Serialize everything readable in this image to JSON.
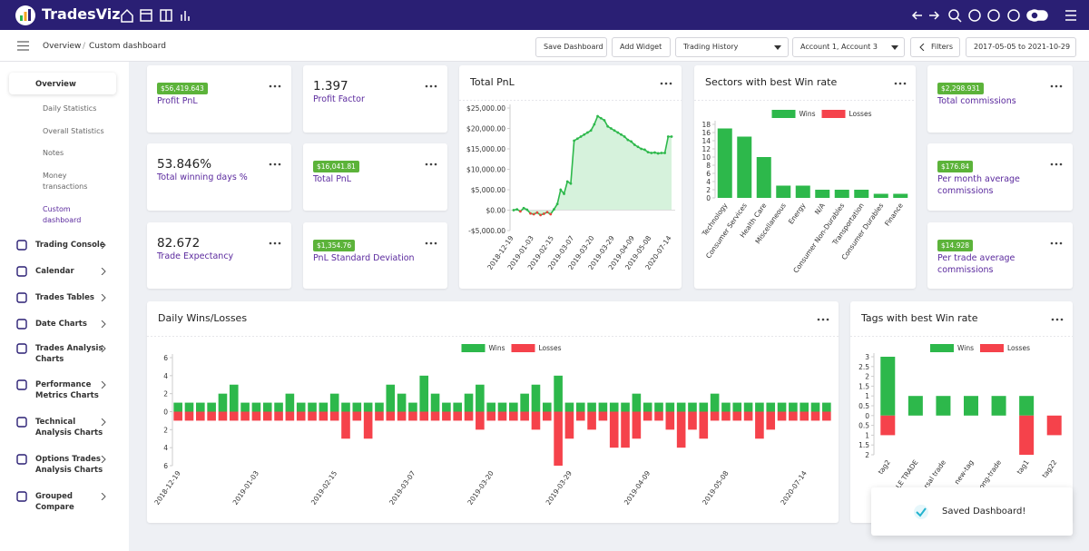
{
  "header": {
    "brand": "TradesViz"
  },
  "breadcrumb": {
    "items": [
      "Overview",
      "Custom dashboard"
    ],
    "separator": "/"
  },
  "toolbar": {
    "save": "Save Dashboard",
    "add": "Add Widget",
    "history": "Trading History",
    "accounts": "Account 1, Account 3",
    "filters": "Filters",
    "dates": "2017-05-05 to 2021-10-29"
  },
  "sidebar": {
    "overview": {
      "label": "Overview",
      "children": [
        "Daily Statistics",
        "Overall Statistics",
        "Notes",
        "Money transactions",
        "Custom dashboard"
      ]
    },
    "items": [
      "Trading Console",
      "Calendar",
      "Trades Tables",
      "Date Charts",
      "Trades Analysis Charts",
      "Performance Metrics Charts",
      "Technical Analysis Charts",
      "Options Trades Analysis Charts",
      "Grouped Compare"
    ]
  },
  "stats": [
    {
      "badge": "$56,419.643",
      "label": "Profit PnL"
    },
    {
      "value": "53.846%",
      "label": "Total winning days %"
    },
    {
      "value": "82.672",
      "label": "Trade Expectancy"
    },
    {
      "value": "1.397",
      "label": "Profit Factor"
    },
    {
      "badge": "$16,041.81",
      "label": "Total PnL"
    },
    {
      "badge": "$1,354.76",
      "label": "PnL Standard Deviation"
    },
    {
      "badge": "$2,298.931",
      "label": "Total commissions"
    },
    {
      "badge": "$176.84",
      "label": "Per month average commissions"
    },
    {
      "badge": "$14.928",
      "label": "Per trade average commissions"
    }
  ],
  "charts": [
    {
      "type": "line",
      "title": "Total PnL",
      "categories": [
        "2018-12-19",
        null,
        null,
        null,
        null,
        null,
        "2019-01-03",
        null,
        null,
        null,
        null,
        null,
        "2019-02-15",
        null,
        null,
        null,
        null,
        null,
        "2019-03-07",
        null,
        null,
        null,
        null,
        null,
        "2019-03-20",
        null,
        null,
        null,
        null,
        null,
        "2019-03-29",
        null,
        null,
        null,
        null,
        null,
        "2019-04-09",
        null,
        null,
        null,
        null,
        "2019-05-08",
        null,
        null,
        null,
        null,
        null,
        "2020-07-14"
      ],
      "values": [
        0,
        200,
        -300,
        500,
        100,
        -800,
        -1000,
        -600,
        -1200,
        -900,
        -500,
        -1000,
        200,
        1500,
        5000,
        4000,
        7000,
        6500,
        17000,
        17500,
        18000,
        18500,
        19000,
        19500,
        21000,
        23000,
        22500,
        22000,
        20500,
        20000,
        19500,
        19000,
        18500,
        18000,
        17200,
        16800,
        16000,
        15500,
        15000,
        14800,
        14200,
        14000,
        14100,
        13900,
        14000,
        14000,
        18000,
        18000
      ],
      "color": "#2db84b",
      "negative_color": "#e8453c",
      "area_color": "#d6f2dc",
      "ylim": [
        -5000,
        25000
      ],
      "yticks": [
        {
          "value": -5000,
          "label": "-$5,000.00"
        },
        {
          "value": 0,
          "label": "$0.00"
        },
        {
          "value": 5000,
          "label": "$5,000.00"
        },
        {
          "value": 10000,
          "label": "$10,000.00"
        },
        {
          "value": 15000,
          "label": "$15,000.00"
        },
        {
          "value": 20000,
          "label": "$20,000.00"
        },
        {
          "value": 25000,
          "label": "$25,000.00"
        }
      ]
    },
    {
      "type": "bar",
      "title": "Sectors with best Win rate",
      "categories": [
        "Technology",
        "Consumer Services",
        "Health Care",
        "Miscellaneous",
        "Energy",
        "N/A",
        "Consumer Non-Durables",
        "Transportation",
        "Consumer Durables",
        "Finance"
      ],
      "series": [
        {
          "name": "Wins",
          "color": "#2db84b",
          "values": [
            17,
            15,
            10,
            3,
            3,
            2,
            2,
            2,
            1,
            1
          ]
        },
        {
          "name": "Losses",
          "color": "#f5424b",
          "values": [
            0,
            0,
            0,
            0,
            0,
            0,
            0,
            0,
            0,
            0
          ]
        }
      ],
      "ylim": [
        0,
        18
      ],
      "yticks": [
        0,
        2,
        4,
        6,
        8,
        10,
        12,
        14,
        16,
        18
      ]
    },
    {
      "type": "bar",
      "title": "Daily Wins/Losses",
      "categories": [
        "2018-12-19",
        null,
        null,
        null,
        null,
        null,
        null,
        "2019-01-03",
        null,
        null,
        null,
        null,
        null,
        null,
        "2019-02-15",
        null,
        null,
        null,
        null,
        null,
        null,
        "2019-03-07",
        null,
        null,
        null,
        null,
        null,
        null,
        "2019-03-20",
        null,
        null,
        null,
        null,
        null,
        null,
        "2019-03-29",
        null,
        null,
        null,
        null,
        null,
        null,
        "2019-04-09",
        null,
        null,
        null,
        null,
        null,
        null,
        "2019-05-08",
        null,
        null,
        null,
        null,
        null,
        null,
        "2020-07-14",
        null,
        null
      ],
      "series": [
        {
          "name": "Wins",
          "color": "#2db84b",
          "values": [
            1,
            1,
            1,
            1,
            2,
            3,
            1,
            1,
            1,
            1,
            2,
            1,
            1,
            1,
            2,
            1,
            1,
            1,
            1,
            3,
            2,
            1,
            4,
            2,
            1,
            1,
            2,
            3,
            1,
            1,
            1,
            2,
            3,
            1,
            4,
            1,
            1,
            1,
            1,
            1,
            1,
            2,
            1,
            1,
            1,
            1,
            1,
            1,
            2,
            1,
            1,
            1,
            1,
            1,
            1,
            1,
            1,
            1,
            1
          ]
        },
        {
          "name": "Losses",
          "color": "#f5424b",
          "values": [
            -1,
            -1,
            -1,
            -1,
            -1,
            -1,
            -1,
            -1,
            -1,
            -1,
            -1,
            -1,
            -1,
            -1,
            -1,
            -3,
            -1,
            -3,
            -1,
            -1,
            -1,
            -1,
            -1,
            -1,
            -1,
            -1,
            -1,
            -2,
            -1,
            -1,
            -1,
            -1,
            -2,
            -1,
            -6,
            -3,
            -1,
            -2,
            -1,
            -4,
            -4,
            -3,
            -1,
            -1,
            -2,
            -4,
            -2,
            -3,
            -1,
            -1,
            -1,
            -1,
            -3,
            -2,
            -1,
            -1,
            -1,
            -1,
            -1
          ]
        }
      ],
      "ylim": [
        -6,
        6
      ],
      "yticks": [
        6,
        4,
        2,
        0,
        {
          "value": -2,
          "label": "2"
        },
        {
          "value": -4,
          "label": "4"
        },
        {
          "value": -6,
          "label": "6"
        }
      ]
    },
    {
      "type": "bar",
      "title": "Tags with best Win rate",
      "categories": [
        "tag2",
        "LE TRADE",
        "rsal trade",
        "new-tag",
        "ong-trade",
        "tag1",
        "tag22"
      ],
      "series": [
        {
          "name": "Wins",
          "color": "#2db84b",
          "values": [
            3,
            1,
            1,
            1,
            1,
            1,
            0
          ]
        },
        {
          "name": "Losses",
          "color": "#f5424b",
          "values": [
            -1,
            0,
            0,
            0,
            0,
            -2,
            -1
          ]
        }
      ],
      "ylim": [
        -2,
        3
      ],
      "yticks": [
        3,
        2.5,
        2,
        1.5,
        1,
        0.5,
        0,
        {
          "value": -0.5,
          "label": "0.5"
        },
        {
          "value": -1,
          "label": "1"
        },
        {
          "value": -1.5,
          "label": "1.5"
        },
        {
          "value": -2,
          "label": "2"
        }
      ]
    }
  ],
  "toast": "Saved Dashboard!"
}
